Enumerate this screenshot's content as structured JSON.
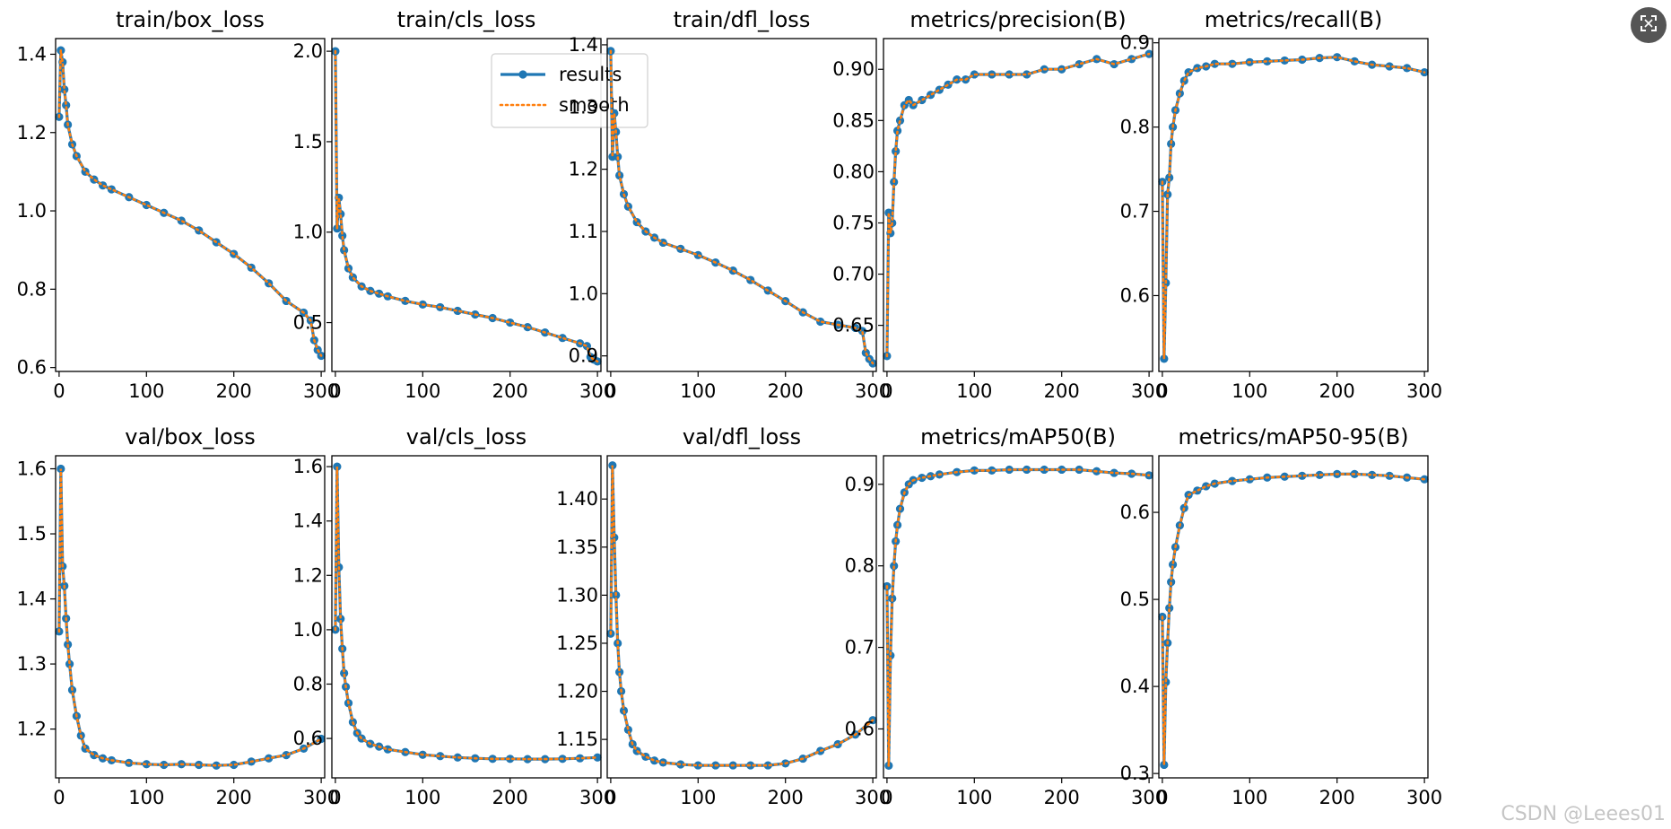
{
  "watermark": "CSDN @Leees01",
  "expand_icon": "expand-icon",
  "colors": {
    "results": "#1f77b4",
    "smooth": "#ff7f0e"
  },
  "legend": {
    "results": "results",
    "smooth": "smooth"
  },
  "chart_data": [
    {
      "type": "line",
      "title": "train/box_loss",
      "xlim": [
        -4,
        304
      ],
      "ylim": [
        0.59,
        1.44
      ],
      "xticks": [
        0,
        100,
        200,
        300
      ],
      "xtick_labels": [
        "0",
        "100",
        "200",
        "300"
      ],
      "yticks": [
        0.6,
        0.8,
        1.0,
        1.2,
        1.4
      ],
      "ytick_labels": [
        "0.6",
        "0.8",
        "1.0",
        "1.2",
        "1.4"
      ],
      "x": [
        0,
        2,
        4,
        6,
        8,
        10,
        15,
        20,
        30,
        40,
        50,
        60,
        80,
        100,
        120,
        140,
        160,
        180,
        200,
        220,
        240,
        260,
        280,
        288,
        292,
        296,
        300
      ],
      "y": [
        1.24,
        1.41,
        1.38,
        1.31,
        1.27,
        1.22,
        1.17,
        1.14,
        1.1,
        1.08,
        1.065,
        1.055,
        1.035,
        1.015,
        0.995,
        0.975,
        0.95,
        0.92,
        0.89,
        0.855,
        0.815,
        0.77,
        0.74,
        0.72,
        0.67,
        0.645,
        0.63
      ]
    },
    {
      "type": "line",
      "title": "train/cls_loss",
      "xlim": [
        -4,
        304
      ],
      "ylim": [
        0.23,
        2.07
      ],
      "xticks": [
        0,
        100,
        200,
        300
      ],
      "xtick_labels": [
        "0",
        "100",
        "200",
        "300"
      ],
      "yticks": [
        0.5,
        1.0,
        1.5,
        2.0
      ],
      "ytick_labels": [
        "0.5",
        "1.0",
        "1.5",
        "2.0"
      ],
      "x": [
        0,
        2,
        4,
        6,
        8,
        10,
        15,
        20,
        30,
        40,
        50,
        60,
        80,
        100,
        120,
        140,
        160,
        180,
        200,
        220,
        240,
        260,
        280,
        288,
        292,
        296,
        300
      ],
      "y": [
        2.0,
        1.02,
        1.19,
        1.1,
        0.98,
        0.9,
        0.8,
        0.75,
        0.7,
        0.675,
        0.66,
        0.645,
        0.62,
        0.6,
        0.585,
        0.565,
        0.545,
        0.525,
        0.5,
        0.475,
        0.445,
        0.415,
        0.385,
        0.37,
        0.31,
        0.295,
        0.285
      ]
    },
    {
      "type": "line",
      "title": "train/dfl_loss",
      "xlim": [
        -4,
        304
      ],
      "ylim": [
        0.875,
        1.41
      ],
      "xticks": [
        0,
        100,
        200,
        300
      ],
      "xtick_labels": [
        "0",
        "100",
        "200",
        "300"
      ],
      "yticks": [
        0.9,
        1.0,
        1.1,
        1.2,
        1.3,
        1.4
      ],
      "ytick_labels": [
        "0.9",
        "1.0",
        "1.1",
        "1.2",
        "1.3",
        "1.4"
      ],
      "x": [
        0,
        2,
        4,
        6,
        8,
        10,
        15,
        20,
        30,
        40,
        50,
        60,
        80,
        100,
        120,
        140,
        160,
        180,
        200,
        220,
        240,
        260,
        280,
        288,
        292,
        296,
        300
      ],
      "y": [
        1.39,
        1.22,
        1.29,
        1.26,
        1.22,
        1.19,
        1.16,
        1.14,
        1.115,
        1.1,
        1.09,
        1.082,
        1.072,
        1.062,
        1.05,
        1.037,
        1.022,
        1.005,
        0.988,
        0.97,
        0.955,
        0.95,
        0.945,
        0.94,
        0.905,
        0.895,
        0.888
      ]
    },
    {
      "type": "line",
      "title": "metrics/precision(B)",
      "xlim": [
        -4,
        304
      ],
      "ylim": [
        0.605,
        0.93
      ],
      "xticks": [
        0,
        100,
        200,
        300
      ],
      "xtick_labels": [
        "0",
        "100",
        "200",
        "300"
      ],
      "yticks": [
        0.65,
        0.7,
        0.75,
        0.8,
        0.85,
        0.9
      ],
      "ytick_labels": [
        "0.65",
        "0.70",
        "0.75",
        "0.80",
        "0.85",
        "0.90"
      ],
      "x": [
        0,
        2,
        4,
        6,
        8,
        10,
        12,
        15,
        20,
        25,
        30,
        40,
        50,
        60,
        70,
        80,
        90,
        100,
        120,
        140,
        160,
        180,
        200,
        220,
        240,
        260,
        280,
        300
      ],
      "y": [
        0.62,
        0.76,
        0.74,
        0.75,
        0.79,
        0.82,
        0.84,
        0.85,
        0.865,
        0.87,
        0.865,
        0.87,
        0.875,
        0.88,
        0.885,
        0.89,
        0.89,
        0.895,
        0.895,
        0.895,
        0.895,
        0.9,
        0.9,
        0.905,
        0.91,
        0.905,
        0.91,
        0.915
      ]
    },
    {
      "type": "line",
      "title": "metrics/recall(B)",
      "xlim": [
        -4,
        304
      ],
      "ylim": [
        0.51,
        0.905
      ],
      "xticks": [
        0,
        100,
        200,
        300
      ],
      "xtick_labels": [
        "0",
        "100",
        "200",
        "300"
      ],
      "yticks": [
        0.6,
        0.7,
        0.8,
        0.9
      ],
      "ytick_labels": [
        "0.6",
        "0.7",
        "0.8",
        "0.9"
      ],
      "x": [
        0,
        2,
        4,
        6,
        8,
        10,
        12,
        15,
        20,
        25,
        30,
        40,
        50,
        60,
        80,
        100,
        120,
        140,
        160,
        180,
        200,
        220,
        240,
        260,
        280,
        300
      ],
      "y": [
        0.735,
        0.525,
        0.615,
        0.72,
        0.74,
        0.78,
        0.8,
        0.82,
        0.84,
        0.855,
        0.865,
        0.87,
        0.872,
        0.875,
        0.875,
        0.877,
        0.878,
        0.879,
        0.88,
        0.882,
        0.883,
        0.878,
        0.874,
        0.872,
        0.87,
        0.865
      ]
    },
    {
      "type": "line",
      "title": "val/box_loss",
      "xlim": [
        -4,
        304
      ],
      "ylim": [
        1.125,
        1.62
      ],
      "xticks": [
        0,
        100,
        200,
        300
      ],
      "xtick_labels": [
        "0",
        "100",
        "200",
        "300"
      ],
      "yticks": [
        1.2,
        1.3,
        1.4,
        1.5,
        1.6
      ],
      "ytick_labels": [
        "1.2",
        "1.3",
        "1.4",
        "1.5",
        "1.6"
      ],
      "x": [
        0,
        2,
        4,
        6,
        8,
        10,
        12,
        15,
        20,
        25,
        30,
        40,
        50,
        60,
        80,
        100,
        120,
        140,
        160,
        180,
        200,
        220,
        240,
        260,
        280,
        300
      ],
      "y": [
        1.35,
        1.6,
        1.45,
        1.42,
        1.37,
        1.33,
        1.3,
        1.26,
        1.22,
        1.19,
        1.17,
        1.16,
        1.155,
        1.152,
        1.148,
        1.146,
        1.145,
        1.146,
        1.145,
        1.144,
        1.145,
        1.15,
        1.155,
        1.16,
        1.17,
        1.185
      ]
    },
    {
      "type": "line",
      "title": "val/cls_loss",
      "xlim": [
        -4,
        304
      ],
      "ylim": [
        0.455,
        1.64
      ],
      "xticks": [
        0,
        100,
        200,
        300
      ],
      "xtick_labels": [
        "0",
        "100",
        "200",
        "300"
      ],
      "yticks": [
        0.6,
        0.8,
        1.0,
        1.2,
        1.4,
        1.6
      ],
      "ytick_labels": [
        "0.6",
        "0.8",
        "1.0",
        "1.2",
        "1.4",
        "1.6"
      ],
      "x": [
        0,
        2,
        4,
        6,
        8,
        10,
        12,
        15,
        20,
        25,
        30,
        40,
        50,
        60,
        80,
        100,
        120,
        140,
        160,
        180,
        200,
        220,
        240,
        260,
        280,
        300
      ],
      "y": [
        1.0,
        1.6,
        1.23,
        1.04,
        0.93,
        0.84,
        0.79,
        0.73,
        0.66,
        0.62,
        0.6,
        0.58,
        0.57,
        0.56,
        0.55,
        0.54,
        0.535,
        0.53,
        0.527,
        0.525,
        0.525,
        0.524,
        0.524,
        0.525,
        0.527,
        0.53
      ]
    },
    {
      "type": "line",
      "title": "val/dfl_loss",
      "xlim": [
        -4,
        304
      ],
      "ylim": [
        1.11,
        1.445
      ],
      "xticks": [
        0,
        100,
        200,
        300
      ],
      "xtick_labels": [
        "0",
        "100",
        "200",
        "300"
      ],
      "yticks": [
        1.15,
        1.2,
        1.25,
        1.3,
        1.35,
        1.4
      ],
      "ytick_labels": [
        "1.15",
        "1.20",
        "1.25",
        "1.30",
        "1.35",
        "1.40"
      ],
      "x": [
        0,
        2,
        4,
        6,
        8,
        10,
        12,
        15,
        20,
        25,
        30,
        40,
        50,
        60,
        80,
        100,
        120,
        140,
        160,
        180,
        200,
        220,
        240,
        260,
        280,
        300
      ],
      "y": [
        1.26,
        1.435,
        1.36,
        1.3,
        1.25,
        1.22,
        1.2,
        1.18,
        1.16,
        1.145,
        1.138,
        1.132,
        1.128,
        1.126,
        1.124,
        1.123,
        1.123,
        1.123,
        1.123,
        1.123,
        1.125,
        1.13,
        1.138,
        1.145,
        1.155,
        1.17
      ]
    },
    {
      "type": "line",
      "title": "metrics/mAP50(B)",
      "xlim": [
        -4,
        304
      ],
      "ylim": [
        0.54,
        0.935
      ],
      "xticks": [
        0,
        100,
        200,
        300
      ],
      "xtick_labels": [
        "0",
        "100",
        "200",
        "300"
      ],
      "yticks": [
        0.6,
        0.7,
        0.8,
        0.9
      ],
      "ytick_labels": [
        "0.6",
        "0.7",
        "0.8",
        "0.9"
      ],
      "x": [
        0,
        2,
        4,
        6,
        8,
        10,
        12,
        15,
        20,
        25,
        30,
        40,
        50,
        60,
        80,
        100,
        120,
        140,
        160,
        180,
        200,
        220,
        240,
        260,
        280,
        300
      ],
      "y": [
        0.775,
        0.555,
        0.69,
        0.76,
        0.8,
        0.83,
        0.85,
        0.87,
        0.89,
        0.9,
        0.905,
        0.908,
        0.91,
        0.912,
        0.915,
        0.917,
        0.917,
        0.918,
        0.918,
        0.918,
        0.918,
        0.918,
        0.916,
        0.914,
        0.913,
        0.911
      ]
    },
    {
      "type": "line",
      "title": "metrics/mAP50-95(B)",
      "xlim": [
        -4,
        304
      ],
      "ylim": [
        0.295,
        0.665
      ],
      "xticks": [
        0,
        100,
        200,
        300
      ],
      "xtick_labels": [
        "0",
        "100",
        "200",
        "300"
      ],
      "yticks": [
        0.3,
        0.4,
        0.5,
        0.6
      ],
      "ytick_labels": [
        "0.3",
        "0.4",
        "0.5",
        "0.6"
      ],
      "x": [
        0,
        2,
        4,
        6,
        8,
        10,
        12,
        15,
        20,
        25,
        30,
        40,
        50,
        60,
        80,
        100,
        120,
        140,
        160,
        180,
        200,
        220,
        240,
        260,
        280,
        300
      ],
      "y": [
        0.48,
        0.31,
        0.405,
        0.45,
        0.49,
        0.52,
        0.54,
        0.56,
        0.585,
        0.605,
        0.62,
        0.625,
        0.63,
        0.633,
        0.636,
        0.638,
        0.64,
        0.641,
        0.642,
        0.643,
        0.644,
        0.644,
        0.643,
        0.642,
        0.64,
        0.638
      ]
    }
  ]
}
